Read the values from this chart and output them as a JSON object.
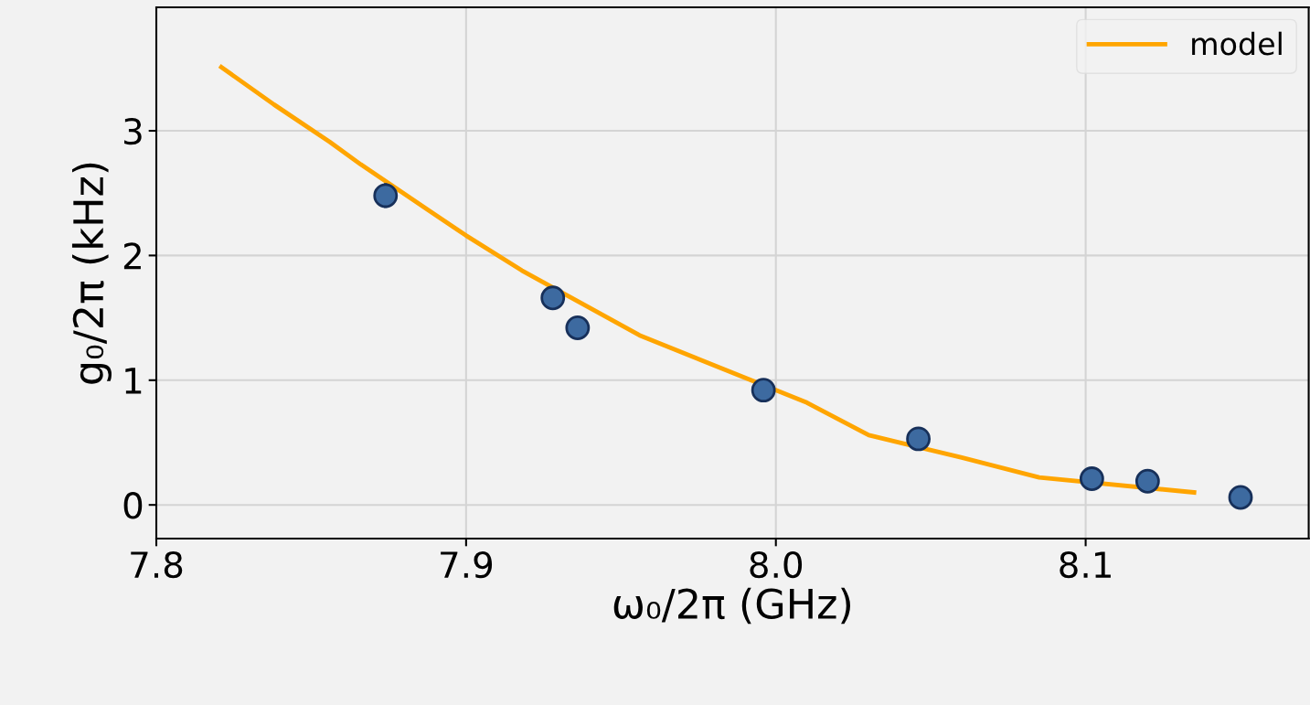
{
  "chart_data": {
    "type": "scatter",
    "xlabel": "ω₀/2π (GHz)",
    "ylabel": "g₀/2π (kHz)",
    "xlim": [
      7.8,
      8.172
    ],
    "ylim": [
      -0.27,
      3.99
    ],
    "xticks": [
      7.8,
      7.9,
      {
        "value": 8.0,
        "label": "8.0"
      },
      8.1
    ],
    "yticks": [
      0,
      1,
      2,
      3
    ],
    "grid": true,
    "legend": "top right",
    "series": [
      {
        "color": "#3d6aa0",
        "marker": "circle",
        "x": [
          7.874,
          7.928,
          7.936,
          7.996,
          8.046,
          8.102,
          8.12,
          8.15
        ],
        "values": [
          2.48,
          1.66,
          1.42,
          0.92,
          0.53,
          0.21,
          0.19,
          0.06
        ],
        "errors": [
          0.1,
          null,
          null,
          null,
          null,
          null,
          null,
          null
        ]
      },
      {
        "type": "line",
        "name": "model",
        "color": "#ffa500",
        "marker": "none",
        "line_style": "solid",
        "x": [
          7.821,
          7.838,
          7.856,
          7.866,
          7.888,
          7.9,
          7.918,
          7.956,
          8.01,
          8.03,
          8.06,
          8.085,
          8.135
        ],
        "values": [
          3.51,
          3.21,
          2.91,
          2.73,
          2.36,
          2.16,
          1.88,
          1.36,
          0.82,
          0.56,
          0.38,
          0.22,
          0.1
        ]
      }
    ]
  }
}
